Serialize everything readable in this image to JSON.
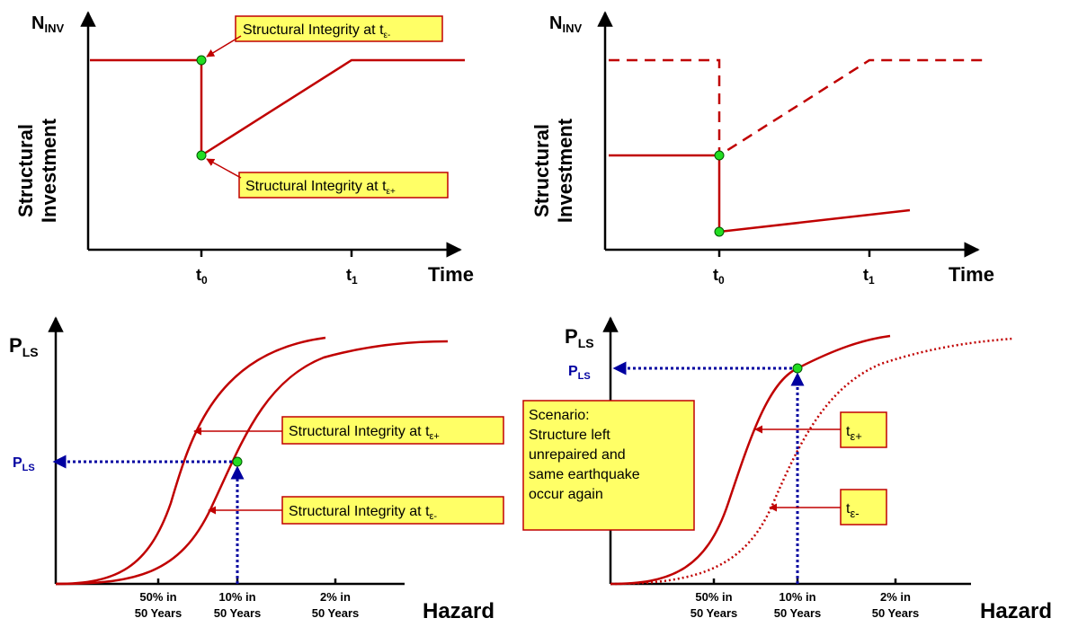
{
  "panel_tl": {
    "y_symbol": "N",
    "y_symbol_sub": "INV",
    "y_label_line1": "Structural",
    "y_label_line2": "Investment",
    "x_label": "Time",
    "tick_t0": "t",
    "tick_t0_sub": "0",
    "tick_t1": "t",
    "tick_t1_sub": "1",
    "callout_top": "Structural Integrity at t",
    "callout_top_sub": "ε-",
    "callout_bottom": "Structural Integrity at t",
    "callout_bottom_sub": "ε+"
  },
  "panel_tr": {
    "y_symbol": "N",
    "y_symbol_sub": "INV",
    "y_label_line1": "Structural",
    "y_label_line2": "Investment",
    "x_label": "Time",
    "tick_t0": "t",
    "tick_t0_sub": "0",
    "tick_t1": "t",
    "tick_t1_sub": "1"
  },
  "panel_bl": {
    "y_symbol": "P",
    "y_symbol_sub": "LS",
    "pls_marker": "P",
    "pls_marker_sub": "LS",
    "x_label": "Hazard",
    "ticks": [
      {
        "line1": "50% in",
        "line2": "50 Years"
      },
      {
        "line1": "10% in",
        "line2": "50 Years"
      },
      {
        "line1": "2% in",
        "line2": "50 Years"
      }
    ],
    "callout_upper": "Structural Integrity at t",
    "callout_upper_sub": "ε+",
    "callout_lower": "Structural Integrity at t",
    "callout_lower_sub": "ε-"
  },
  "panel_br": {
    "y_symbol": "P",
    "y_symbol_sub": "LS",
    "pls_marker": "P",
    "pls_marker_sub": "LS",
    "x_label": "Hazard",
    "ticks": [
      {
        "line1": "50% in",
        "line2": "50 Years"
      },
      {
        "line1": "10% in",
        "line2": "50 Years"
      },
      {
        "line1": "2% in",
        "line2": "50 Years"
      }
    ],
    "scenario_lines": [
      "Scenario:",
      "Structure left",
      "unrepaired and",
      "same earthquake",
      "occur again"
    ],
    "tag_plus": "t",
    "tag_plus_sub": "ε+",
    "tag_minus": "t",
    "tag_minus_sub": "ε-"
  }
}
